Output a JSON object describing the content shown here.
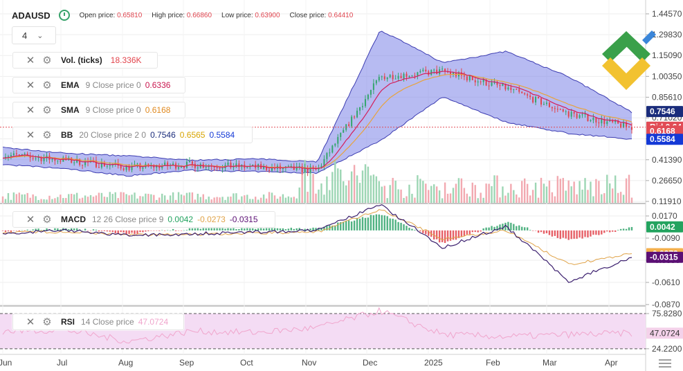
{
  "header": {
    "symbol": "ADAUSD",
    "open_label": "Open price:",
    "open_value": "0.65810",
    "high_label": "High price:",
    "high_value": "0.66860",
    "low_label": "Low price:",
    "low_value": "0.63900",
    "close_label": "Close price:",
    "close_value": "0.64410"
  },
  "timeframe": {
    "value": "4"
  },
  "indicators": {
    "vol": {
      "name": "Vol. (ticks)",
      "params": "",
      "v1": "18.336K"
    },
    "ema": {
      "name": "EMA",
      "params": "9 Close price 0",
      "v1": "0.6336"
    },
    "sma": {
      "name": "SMA",
      "params": "9 Close price 0",
      "v1": "0.6168"
    },
    "bb": {
      "name": "BB",
      "params": "20 Close price 2 0",
      "v1": "0.7546",
      "v2": "0.6565",
      "v3": "0.5584"
    },
    "macd": {
      "name": "MACD",
      "params": "12 26 Close price 9",
      "v1": "0.0042",
      "v2": "-0.0273",
      "v3": "-0.0315"
    },
    "rsi": {
      "name": "RSI",
      "params": "14 Close price",
      "v1": "47.0724"
    }
  },
  "price_axis": {
    "ticks": [
      "1.44570",
      "1.29830",
      "1.15090",
      "1.00350",
      "0.85610",
      "0.71020",
      "0.56130",
      "0.41390",
      "0.26650",
      "0.11910"
    ],
    "bid_label": "Bid 0.64410",
    "countdown": "07:45:22"
  },
  "macd_axis": {
    "ticks": [
      "0.0170",
      "-0.0090",
      "-0.0350",
      "-0.0610",
      "-0.0870"
    ]
  },
  "rsi_axis": {
    "ticks": [
      "75.8280",
      "24.2200"
    ]
  },
  "x_labels": [
    "Jun",
    "Jul",
    "Aug",
    "Sep",
    "Oct",
    "Nov",
    "Dec",
    "2025",
    "Feb",
    "Mar",
    "Apr"
  ],
  "colors": {
    "bg": "#ffffff",
    "grid": "#eeeeee",
    "up": "#33a56c",
    "down": "#e2434b",
    "bb_fill": "#6f77e6",
    "bb_line": "#3b3bb0",
    "ema": "#d41d5a",
    "sma": "#e8a33c",
    "vol_up": "#9dd6b4",
    "vol_down": "#f2a9b0",
    "macd_line": "#3b1f6e",
    "macd_signal": "#e0a348",
    "rsi_line": "#f0a5cc",
    "rsi_band": "#f4dcf4",
    "bid": "#e14b55",
    "upper_tag": "#1a2c7b",
    "lower_tag": "#1439d6",
    "macd_pos_tag": "#23a35f",
    "macd_sig_tag": "#f4b04d",
    "macd_line_tag": "#5b0f74"
  },
  "chart_data": [
    {
      "type": "line",
      "pane": "price",
      "ylim": [
        0.119,
        1.4457
      ],
      "x": [
        "Jun",
        "Jul",
        "Aug",
        "Sep",
        "Oct",
        "Nov",
        "Dec",
        "2025",
        "Feb",
        "Mar",
        "Apr"
      ],
      "series": [
        {
          "values": [
            0.45,
            0.41,
            0.36,
            0.38,
            0.36,
            0.34,
            1.0,
            1.04,
            0.92,
            0.74,
            0.64
          ]
        }
      ],
      "bb_upper": [
        0.5,
        0.46,
        0.44,
        0.41,
        0.42,
        0.4,
        1.33,
        1.1,
        1.18,
        1.0,
        0.75
      ],
      "bb_lower": [
        0.38,
        0.35,
        0.3,
        0.34,
        0.33,
        0.32,
        0.55,
        0.86,
        0.68,
        0.6,
        0.56
      ]
    },
    {
      "type": "bar",
      "pane": "macd",
      "ylim": [
        -0.087,
        0.03
      ],
      "x": [
        "Jun",
        "Jul",
        "Aug",
        "Sep",
        "Oct",
        "Nov",
        "Dec",
        "2025",
        "Feb",
        "Mar",
        "Apr"
      ],
      "histogram": [
        -0.002,
        0.003,
        -0.004,
        0.002,
        0.003,
        0.002,
        0.02,
        -0.015,
        0.01,
        -0.012,
        0.004
      ],
      "macd": [
        -0.003,
        0.0,
        -0.006,
        -0.004,
        -0.002,
        0.0,
        0.03,
        -0.02,
        0.005,
        -0.06,
        -0.0315
      ],
      "signal": [
        -0.002,
        -0.002,
        -0.005,
        -0.005,
        -0.003,
        -0.002,
        0.025,
        -0.01,
        0.0,
        -0.04,
        -0.0273
      ]
    },
    {
      "type": "line",
      "pane": "rsi",
      "ylim": [
        20,
        85
      ],
      "bands": [
        75.828,
        24.22
      ],
      "x": [
        "Jun",
        "Jul",
        "Aug",
        "Sep",
        "Oct",
        "Nov",
        "Dec",
        "2025",
        "Feb",
        "Mar",
        "Apr"
      ],
      "values": [
        50,
        52,
        35,
        50,
        48,
        55,
        80,
        45,
        42,
        45,
        47.0724
      ]
    }
  ]
}
